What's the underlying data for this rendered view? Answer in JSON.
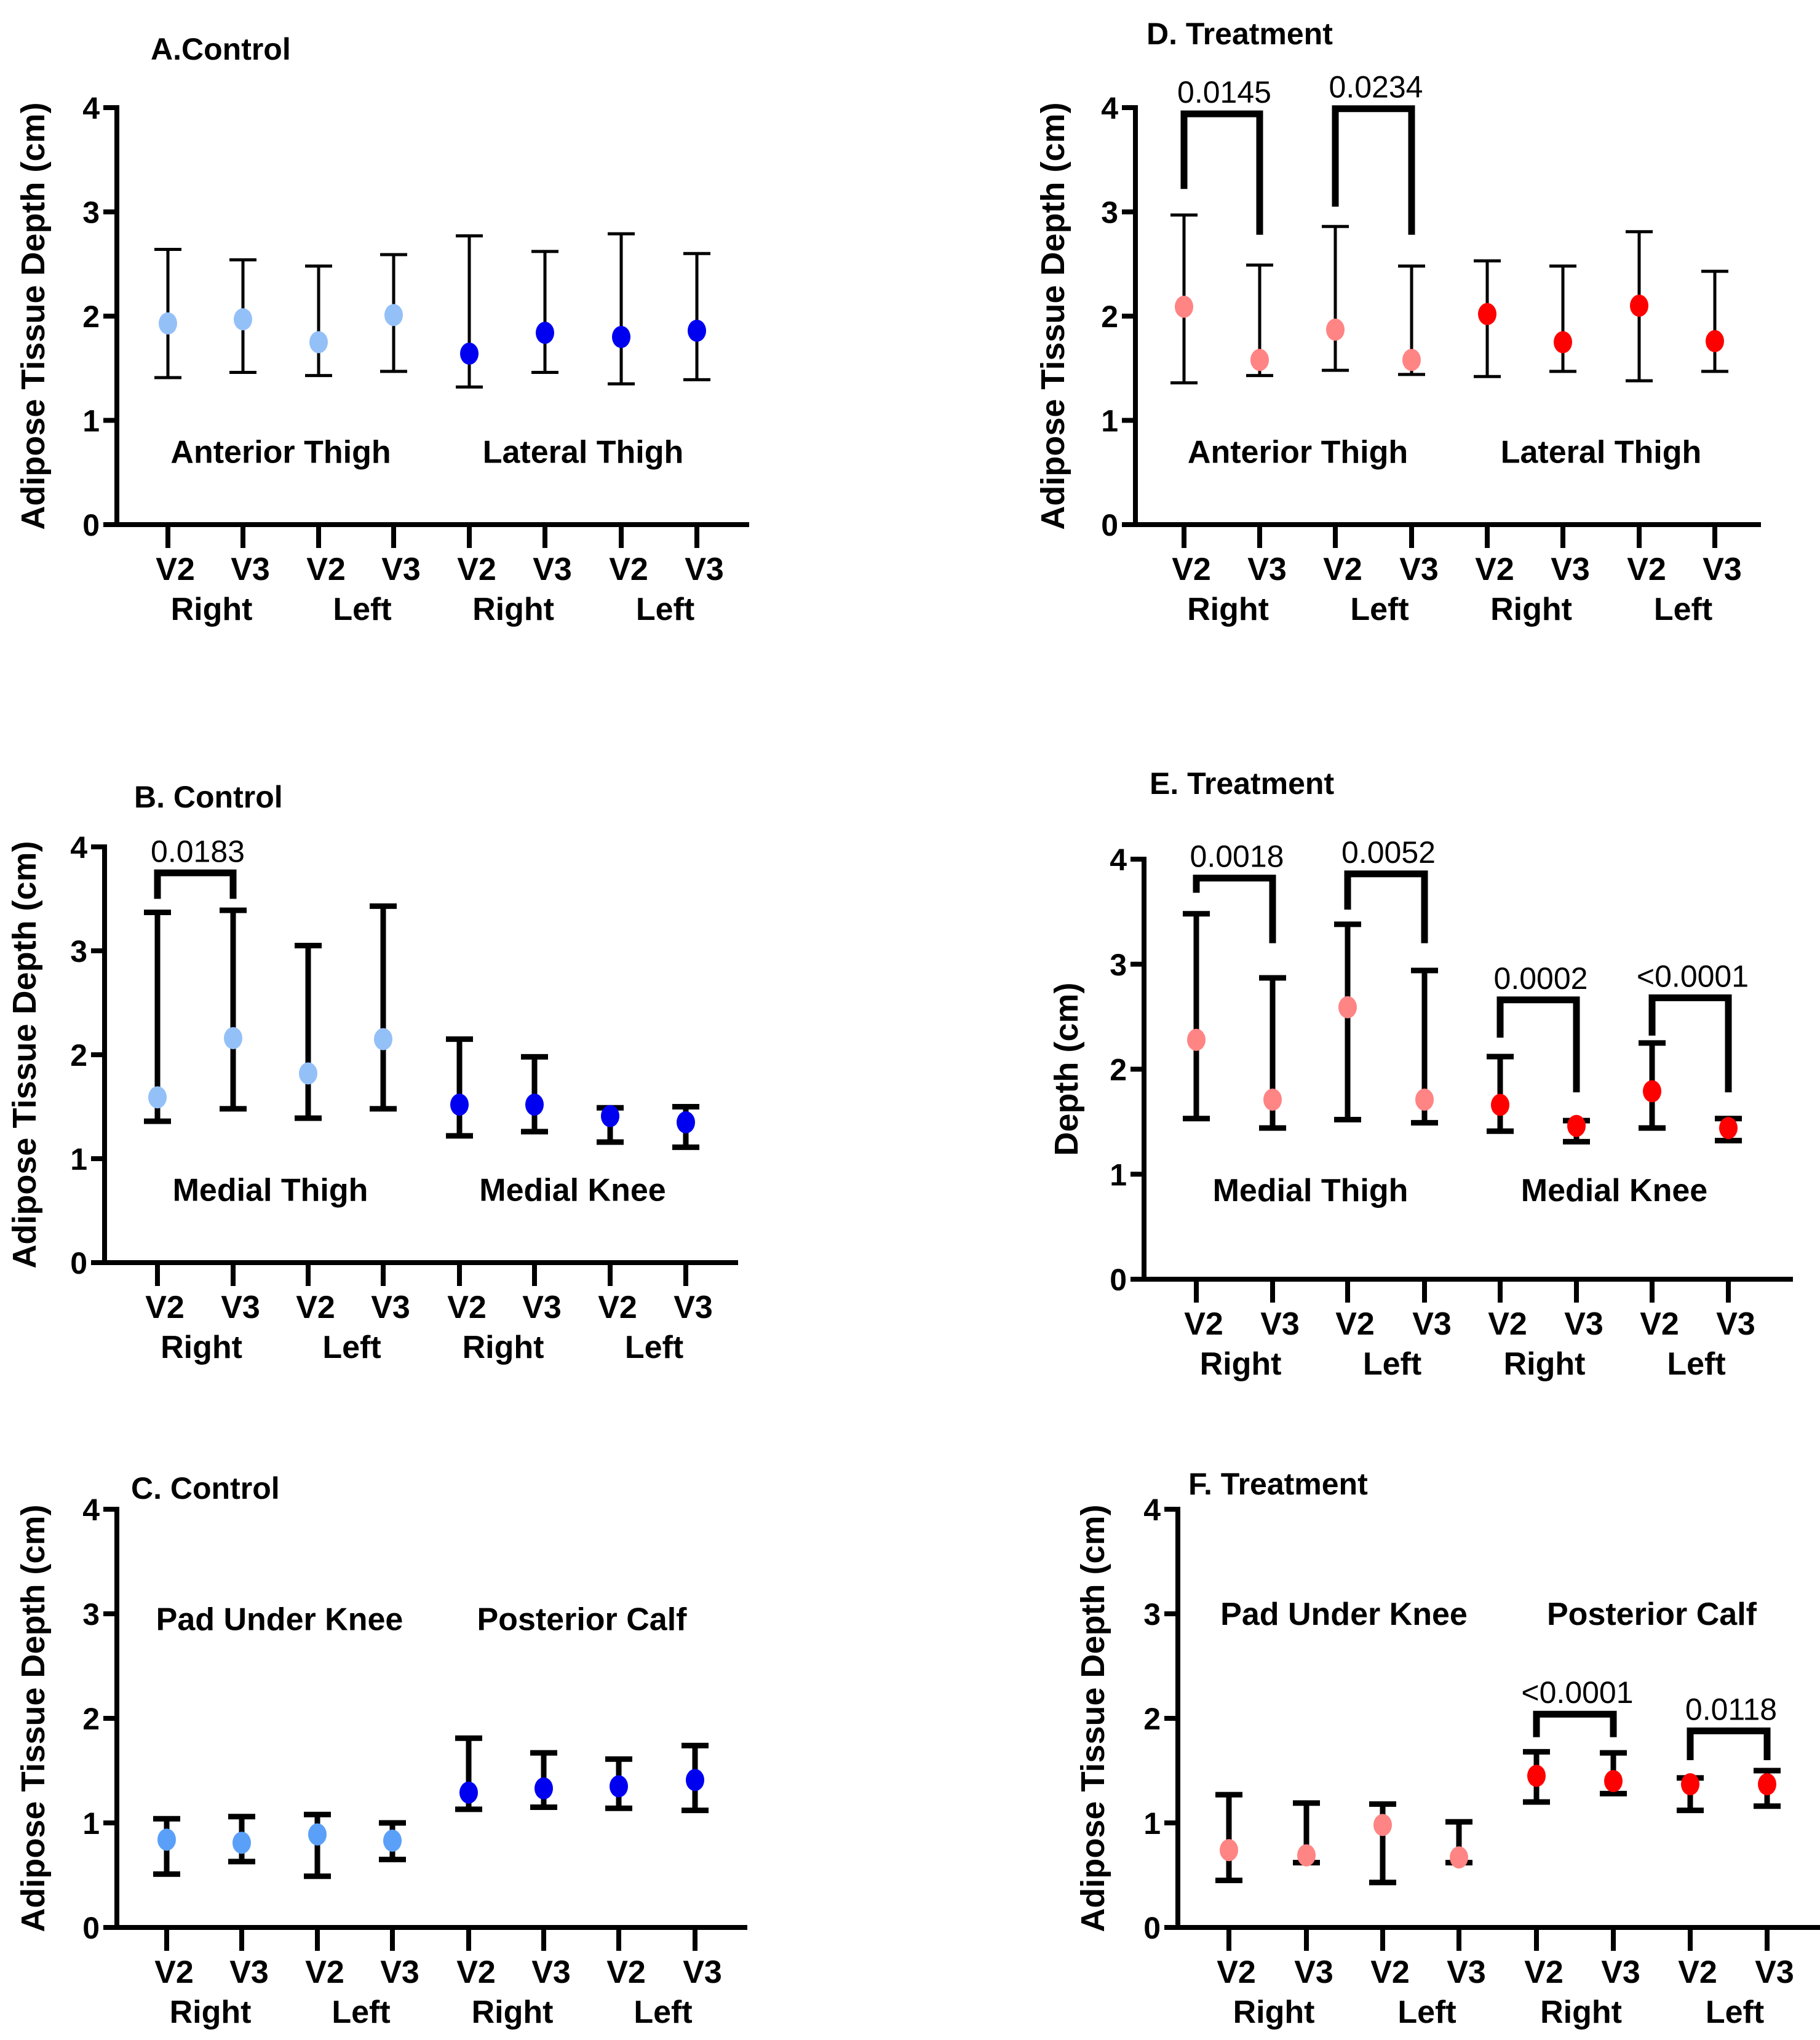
{
  "colors": {
    "control_light_thigh": "#94C0F8",
    "control_light_calf": "#5AA0F8",
    "control_dark": "#0000F0",
    "treatment_light": "#FF8484",
    "treatment_dark": "#FF0000",
    "axis": "#000000"
  },
  "chart_data": [
    {
      "id": "A",
      "type": "scatter",
      "title": "A.Control",
      "ylabel": "Adipose Tissue Depth (cm)",
      "ylim": [
        0,
        4
      ],
      "yticks": [
        "0",
        "1",
        "2",
        "3",
        "4"
      ],
      "categories": [
        "V2",
        "V3",
        "V2",
        "V3",
        "V2",
        "V3",
        "V2",
        "V3"
      ],
      "side_labels": [
        "Right",
        "Left",
        "Right",
        "Left"
      ],
      "region_labels": [
        "Anterior Thigh",
        "Lateral Thigh"
      ],
      "region_label_y": 0.7,
      "series": [
        {
          "name": "Anterior Thigh",
          "color_key": "control_light_thigh",
          "mean": [
            1.93,
            1.97,
            1.75,
            2.01
          ],
          "upper": [
            2.64,
            2.54,
            2.48,
            2.59
          ],
          "lower": [
            1.41,
            1.46,
            1.43,
            1.47
          ]
        },
        {
          "name": "Lateral Thigh",
          "color_key": "control_dark",
          "mean": [
            1.64,
            1.84,
            1.8,
            1.86
          ],
          "upper": [
            2.77,
            2.62,
            2.79,
            2.6
          ],
          "lower": [
            1.32,
            1.46,
            1.35,
            1.39
          ]
        }
      ],
      "comparisons": []
    },
    {
      "id": "B",
      "type": "scatter",
      "title": "B. Control",
      "ylabel": "Adipose Tissue Depth (cm)",
      "ylim": [
        0,
        4
      ],
      "yticks": [
        "0",
        "1",
        "2",
        "3",
        "4"
      ],
      "categories": [
        "V2",
        "V3",
        "V2",
        "V3",
        "V2",
        "V3",
        "V2",
        "V3"
      ],
      "side_labels": [
        "Right",
        "Left",
        "Right",
        "Left"
      ],
      "region_labels": [
        "Medial Thigh",
        "Medial Knee"
      ],
      "region_label_y": 0.7,
      "series": [
        {
          "name": "Medial Thigh",
          "color_key": "control_light_thigh",
          "mean": [
            1.59,
            2.16,
            1.82,
            2.15
          ],
          "upper": [
            3.37,
            3.39,
            3.05,
            3.43
          ],
          "lower": [
            1.36,
            1.48,
            1.39,
            1.48
          ]
        },
        {
          "name": "Medial Knee",
          "color_key": "control_dark",
          "mean": [
            1.52,
            1.52,
            1.41,
            1.35
          ],
          "upper": [
            2.15,
            1.98,
            1.49,
            1.5
          ],
          "lower": [
            1.22,
            1.26,
            1.16,
            1.11
          ]
        }
      ],
      "comparisons": [
        {
          "from": 0,
          "to": 1,
          "label": "0.0183",
          "bar_y": 3.75,
          "left_end": 3.5,
          "right_end": 3.5
        }
      ]
    },
    {
      "id": "C",
      "type": "scatter",
      "title": "C. Control",
      "ylabel": "Adipose Tissue Depth (cm)",
      "ylim": [
        0,
        4
      ],
      "yticks": [
        "0",
        "1",
        "2",
        "3",
        "4"
      ],
      "categories": [
        "V2",
        "V3",
        "V2",
        "V3",
        "V2",
        "V3",
        "V2",
        "V3"
      ],
      "side_labels": [
        "Right",
        "Left",
        "Right",
        "Left"
      ],
      "region_labels": [
        "Pad Under Knee",
        "Posterior Calf"
      ],
      "region_label_y": 2.95,
      "series": [
        {
          "name": "Pad Under Knee",
          "color_key": "control_light_calf",
          "mean": [
            0.84,
            0.81,
            0.89,
            0.83
          ],
          "upper": [
            1.04,
            1.06,
            1.08,
            1.0
          ],
          "lower": [
            0.51,
            0.63,
            0.49,
            0.65
          ]
        },
        {
          "name": "Posterior Calf",
          "color_key": "control_dark",
          "mean": [
            1.29,
            1.33,
            1.35,
            1.41
          ],
          "upper": [
            1.81,
            1.67,
            1.61,
            1.74
          ],
          "lower": [
            1.13,
            1.15,
            1.14,
            1.12
          ]
        }
      ],
      "comparisons": []
    },
    {
      "id": "D",
      "type": "scatter",
      "title": "D. Treatment",
      "ylabel": "Adipose Tissue Depth (cm)",
      "ylim": [
        0,
        4
      ],
      "yticks": [
        "0",
        "1",
        "2",
        "3",
        "4"
      ],
      "categories": [
        "V2",
        "V3",
        "V2",
        "V3",
        "V2",
        "V3",
        "V2",
        "V3"
      ],
      "side_labels": [
        "Right",
        "Left",
        "Right",
        "Left"
      ],
      "region_labels": [
        "Anterior Thigh",
        "Lateral Thigh"
      ],
      "region_label_y": 0.7,
      "series": [
        {
          "name": "Anterior Thigh",
          "color_key": "treatment_light",
          "mean": [
            2.09,
            1.58,
            1.87,
            1.58
          ],
          "upper": [
            2.97,
            2.49,
            2.86,
            2.48
          ],
          "lower": [
            1.36,
            1.43,
            1.48,
            1.44
          ]
        },
        {
          "name": "Lateral Thigh",
          "color_key": "treatment_dark",
          "mean": [
            2.02,
            1.75,
            2.1,
            1.76
          ],
          "upper": [
            2.53,
            2.48,
            2.81,
            2.43
          ],
          "lower": [
            1.42,
            1.47,
            1.38,
            1.47
          ]
        }
      ],
      "comparisons": [
        {
          "from": 0,
          "to": 1,
          "label": "0.0145",
          "bar_y": 3.94,
          "left_end": 3.22,
          "right_end": 2.78
        },
        {
          "from": 2,
          "to": 3,
          "label": "0.0234",
          "bar_y": 3.99,
          "left_end": 3.05,
          "right_end": 2.78
        }
      ]
    },
    {
      "id": "E",
      "type": "scatter",
      "title": "E. Treatment",
      "ylabel": "Depth (cm)",
      "ylim": [
        0,
        4
      ],
      "yticks": [
        "0",
        "1",
        "2",
        "3",
        "4"
      ],
      "categories": [
        "V2",
        "V3",
        "V2",
        "V3",
        "V2",
        "V3",
        "V2",
        "V3"
      ],
      "side_labels": [
        "Right",
        "Left",
        "Right",
        "Left"
      ],
      "region_labels": [
        "Medial Thigh",
        "Medial Knee"
      ],
      "region_label_y": 0.85,
      "series": [
        {
          "name": "Medial Thigh",
          "color_key": "treatment_light",
          "mean": [
            2.28,
            1.71,
            2.59,
            1.71
          ],
          "upper": [
            3.48,
            2.87,
            3.38,
            2.94
          ],
          "lower": [
            1.53,
            1.44,
            1.52,
            1.49
          ]
        },
        {
          "name": "Medial Knee",
          "color_key": "treatment_dark",
          "mean": [
            1.66,
            1.46,
            1.79,
            1.44
          ],
          "upper": [
            2.12,
            1.51,
            2.25,
            1.53
          ],
          "lower": [
            1.41,
            1.31,
            1.44,
            1.32
          ]
        }
      ],
      "comparisons": [
        {
          "from": 0,
          "to": 1,
          "label": "0.0018",
          "bar_y": 3.82,
          "left_end": 3.68,
          "right_end": 3.2
        },
        {
          "from": 2,
          "to": 3,
          "label": "0.0052",
          "bar_y": 3.86,
          "left_end": 3.52,
          "right_end": 3.2
        },
        {
          "from": 4,
          "to": 5,
          "label": "0.0002",
          "bar_y": 2.66,
          "left_end": 2.3,
          "right_end": 1.78
        },
        {
          "from": 6,
          "to": 7,
          "label": "<0.0001",
          "bar_y": 2.68,
          "left_end": 2.32,
          "right_end": 1.78
        }
      ]
    },
    {
      "id": "F",
      "type": "scatter",
      "title": "F. Treatment",
      "ylabel": "Adipose Tissue Depth (cm)",
      "ylim": [
        0,
        4
      ],
      "yticks": [
        "0",
        "1",
        "2",
        "3",
        "4"
      ],
      "categories": [
        "V2",
        "V3",
        "V2",
        "V3",
        "V2",
        "V3",
        "V2",
        "V3"
      ],
      "side_labels": [
        "Right",
        "Left",
        "Right",
        "Left"
      ],
      "region_labels": [
        "Pad Under Knee",
        "Posterior Calf"
      ],
      "region_label_y": 3.0,
      "series": [
        {
          "name": "Pad Under Knee",
          "color_key": "treatment_light",
          "mean": [
            0.74,
            0.69,
            0.98,
            0.67
          ],
          "upper": [
            1.27,
            1.19,
            1.18,
            1.01
          ],
          "lower": [
            0.45,
            0.62,
            0.43,
            0.62
          ]
        },
        {
          "name": "Posterior Calf",
          "color_key": "treatment_dark",
          "mean": [
            1.45,
            1.4,
            1.37,
            1.37
          ],
          "upper": [
            1.68,
            1.67,
            1.43,
            1.5
          ],
          "lower": [
            1.2,
            1.28,
            1.12,
            1.16
          ]
        }
      ],
      "comparisons": [
        {
          "from": 4,
          "to": 5,
          "label": "<0.0001",
          "bar_y": 2.04,
          "left_end": 1.82,
          "right_end": 1.82
        },
        {
          "from": 6,
          "to": 7,
          "label": "0.0118",
          "bar_y": 1.88,
          "left_end": 1.6,
          "right_end": 1.6
        }
      ]
    }
  ]
}
